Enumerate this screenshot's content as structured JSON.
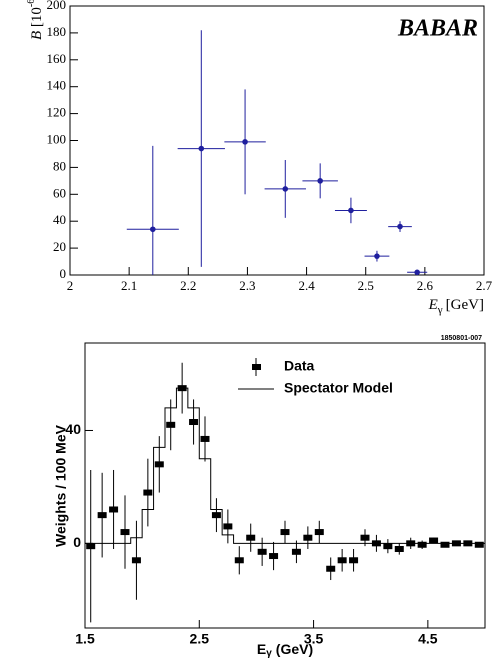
{
  "chart_data": [
    {
      "type": "scatter",
      "logo": "BABAR",
      "ylabel": {
        "symbol": "B",
        "unit": "[10",
        "exponent": "-6",
        "close": "]"
      },
      "xlabel": {
        "symbol": "E",
        "subscript": "γ",
        "unit": "[GeV]"
      },
      "color": "#1f1f9e",
      "x": [
        2.14,
        2.222,
        2.296,
        2.364,
        2.423,
        2.475,
        2.519,
        2.558,
        2.587
      ],
      "xerr": [
        0.044,
        0.04,
        0.035,
        0.035,
        0.03,
        0.027,
        0.021,
        0.02,
        0.017
      ],
      "values": [
        34,
        94,
        99,
        64,
        70,
        48,
        14,
        36,
        2
      ],
      "yerr": [
        62,
        88,
        39,
        21.5,
        13,
        9.5,
        4,
        4,
        1.5
      ],
      "xlim": [
        2,
        2.7
      ],
      "xticks": [
        2,
        2.1,
        2.2,
        2.3,
        2.4,
        2.5,
        2.6,
        2.7
      ],
      "ylim": [
        0,
        200
      ],
      "yticks": [
        0,
        20,
        40,
        60,
        80,
        100,
        120,
        140,
        160,
        180,
        200
      ]
    },
    {
      "type": "scatter",
      "id_label": "1850801-007",
      "ylabel": "Weights / 100 MeV",
      "xlabel": {
        "symbol": "E",
        "subscript": "γ",
        "unit": "(GeV)"
      },
      "color": "#000000",
      "series": [
        {
          "name": "Data",
          "x": [
            1.55,
            1.65,
            1.75,
            1.85,
            1.95,
            2.05,
            2.15,
            2.25,
            2.35,
            2.45,
            2.55,
            2.65,
            2.75,
            2.85,
            2.95,
            3.05,
            3.15,
            3.25,
            3.35,
            3.45,
            3.55,
            3.65,
            3.75,
            3.85,
            3.95,
            4.05,
            4.15,
            4.25,
            4.35,
            4.45,
            4.55,
            4.65,
            4.75,
            4.85,
            4.95
          ],
          "values": [
            -1,
            10,
            12,
            4,
            -6,
            18,
            28,
            42,
            55,
            43,
            37,
            10,
            6,
            -6,
            2,
            -3,
            -4.5,
            4,
            -3,
            2,
            4,
            -9,
            -6,
            -6,
            2,
            0,
            -1,
            -2,
            0,
            -0.5,
            1,
            -0.5,
            0,
            0,
            -0.5
          ],
          "yerr": [
            27,
            15,
            14,
            13,
            14,
            12,
            10,
            9,
            9,
            8,
            8,
            6,
            6,
            5,
            5,
            5,
            5,
            4,
            4,
            4,
            4,
            4,
            4,
            4,
            3,
            3,
            2.5,
            2,
            2,
            1.5,
            1,
            0.5,
            0.5,
            0.5,
            0.5
          ]
        },
        {
          "name": "Spectator Model",
          "bins": [
            1.5,
            1.6,
            1.7,
            1.8,
            1.9,
            2.0,
            2.1,
            2.2,
            2.3,
            2.4,
            2.5,
            2.6,
            2.7,
            2.8,
            2.9,
            3.0,
            3.1,
            3.2,
            3.3,
            3.4,
            3.5,
            3.6,
            3.7,
            3.8,
            3.9,
            4.0,
            4.1,
            4.2,
            4.3,
            4.4,
            4.5,
            4.6,
            4.7,
            4.8,
            4.9,
            5.0
          ],
          "values": [
            0,
            0,
            0,
            0,
            2,
            12,
            34,
            48,
            55,
            48,
            30,
            12,
            3,
            0,
            0,
            0,
            0,
            0,
            0,
            0,
            0,
            0,
            0,
            0,
            0,
            0,
            0,
            0,
            0,
            0,
            0,
            0,
            0,
            0,
            0
          ]
        }
      ],
      "xlim": [
        1.5,
        5.0
      ],
      "xticks": [
        1.5,
        2.5,
        3.5,
        4.5
      ],
      "ylim": [
        -30,
        71
      ],
      "yticks": [
        0,
        40
      ]
    }
  ]
}
